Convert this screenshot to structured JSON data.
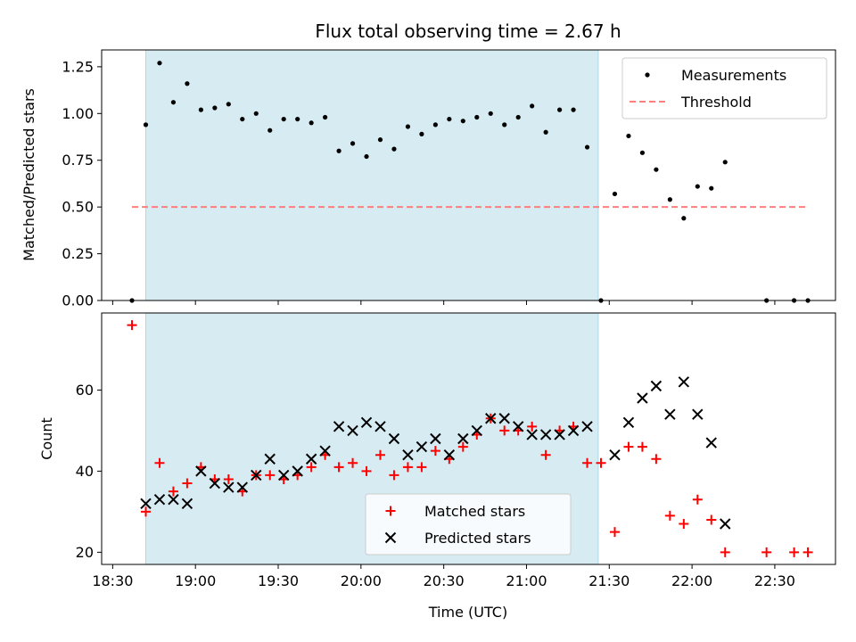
{
  "chart_data": [
    {
      "type": "scatter",
      "panel": "top",
      "title": "Flux total observing time = 2.67 h",
      "xlabel": "",
      "ylabel": "Matched/Predicted stars",
      "xlim": [
        "18:26",
        "22:52"
      ],
      "ylim": [
        0,
        1.34
      ],
      "yticks": [
        0.0,
        0.25,
        0.5,
        0.75,
        1.0,
        1.25
      ],
      "ytick_labels": [
        "0.00",
        "0.25",
        "0.50",
        "0.75",
        "1.00",
        "1.25"
      ],
      "shaded_span": [
        "18:42",
        "21:26"
      ],
      "legend": {
        "placement": "upper right",
        "entries": [
          "Measurements",
          "Threshold"
        ]
      },
      "series": [
        {
          "name": "Measurements",
          "marker": "dot",
          "color": "#000000",
          "points": [
            [
              "18:37",
              0.0
            ],
            [
              "18:42",
              0.94
            ],
            [
              "18:47",
              1.27
            ],
            [
              "18:52",
              1.06
            ],
            [
              "18:57",
              1.16
            ],
            [
              "19:02",
              1.02
            ],
            [
              "19:07",
              1.03
            ],
            [
              "19:12",
              1.05
            ],
            [
              "19:17",
              0.97
            ],
            [
              "19:22",
              1.0
            ],
            [
              "19:27",
              0.91
            ],
            [
              "19:32",
              0.97
            ],
            [
              "19:37",
              0.97
            ],
            [
              "19:42",
              0.95
            ],
            [
              "19:47",
              0.98
            ],
            [
              "19:52",
              0.8
            ],
            [
              "19:57",
              0.84
            ],
            [
              "20:02",
              0.77
            ],
            [
              "20:07",
              0.86
            ],
            [
              "20:12",
              0.81
            ],
            [
              "20:17",
              0.93
            ],
            [
              "20:22",
              0.89
            ],
            [
              "20:27",
              0.94
            ],
            [
              "20:32",
              0.97
            ],
            [
              "20:37",
              0.96
            ],
            [
              "20:42",
              0.98
            ],
            [
              "20:47",
              1.0
            ],
            [
              "20:52",
              0.94
            ],
            [
              "20:57",
              0.98
            ],
            [
              "21:02",
              1.04
            ],
            [
              "21:07",
              0.9
            ],
            [
              "21:12",
              1.02
            ],
            [
              "21:17",
              1.02
            ],
            [
              "21:22",
              0.82
            ],
            [
              "21:27",
              0.0
            ],
            [
              "21:32",
              0.57
            ],
            [
              "21:37",
              0.88
            ],
            [
              "21:42",
              0.79
            ],
            [
              "21:47",
              0.7
            ],
            [
              "21:52",
              0.54
            ],
            [
              "21:57",
              0.44
            ],
            [
              "22:02",
              0.61
            ],
            [
              "22:07",
              0.6
            ],
            [
              "22:12",
              0.74
            ],
            [
              "22:27",
              0.0
            ],
            [
              "22:37",
              0.0
            ],
            [
              "22:42",
              0.0
            ]
          ]
        },
        {
          "name": "Threshold",
          "marker": "dashed-line",
          "color": "#ff7f7f",
          "points": [
            [
              "18:37",
              0.5
            ],
            [
              "22:42",
              0.5
            ]
          ]
        }
      ]
    },
    {
      "type": "scatter",
      "panel": "bottom",
      "title": "",
      "xlabel": "Time (UTC)",
      "ylabel": "Count",
      "xlim": [
        "18:26",
        "22:52"
      ],
      "ylim": [
        17,
        79
      ],
      "yticks": [
        20,
        40,
        60
      ],
      "ytick_labels": [
        "20",
        "40",
        "60"
      ],
      "xtick_labels": [
        "18:30",
        "19:00",
        "19:30",
        "20:00",
        "20:30",
        "21:00",
        "21:30",
        "22:00",
        "22:30"
      ],
      "shaded_span": [
        "18:42",
        "21:26"
      ],
      "legend": {
        "placement": "lower center",
        "entries": [
          "Matched stars",
          "Predicted stars"
        ]
      },
      "series": [
        {
          "name": "Matched stars",
          "marker": "plus",
          "color": "#ff0000",
          "points": [
            [
              "18:37",
              76
            ],
            [
              "18:42",
              30
            ],
            [
              "18:47",
              42
            ],
            [
              "18:52",
              35
            ],
            [
              "18:57",
              37
            ],
            [
              "19:02",
              41
            ],
            [
              "19:07",
              38
            ],
            [
              "19:12",
              38
            ],
            [
              "19:17",
              35
            ],
            [
              "19:22",
              39
            ],
            [
              "19:27",
              39
            ],
            [
              "19:32",
              38
            ],
            [
              "19:37",
              39
            ],
            [
              "19:42",
              41
            ],
            [
              "19:47",
              44
            ],
            [
              "19:52",
              41
            ],
            [
              "19:57",
              42
            ],
            [
              "20:02",
              40
            ],
            [
              "20:07",
              44
            ],
            [
              "20:12",
              39
            ],
            [
              "20:17",
              41
            ],
            [
              "20:22",
              41
            ],
            [
              "20:27",
              45
            ],
            [
              "20:32",
              43
            ],
            [
              "20:37",
              46
            ],
            [
              "20:42",
              49
            ],
            [
              "20:47",
              53
            ],
            [
              "20:52",
              50
            ],
            [
              "20:57",
              50
            ],
            [
              "21:02",
              51
            ],
            [
              "21:07",
              44
            ],
            [
              "21:12",
              50
            ],
            [
              "21:17",
              51
            ],
            [
              "21:22",
              42
            ],
            [
              "21:27",
              42
            ],
            [
              "21:32",
              25
            ],
            [
              "21:37",
              46
            ],
            [
              "21:42",
              46
            ],
            [
              "21:47",
              43
            ],
            [
              "21:52",
              29
            ],
            [
              "21:57",
              27
            ],
            [
              "22:02",
              33
            ],
            [
              "22:07",
              28
            ],
            [
              "22:12",
              20
            ],
            [
              "22:27",
              20
            ],
            [
              "22:37",
              20
            ],
            [
              "22:42",
              20
            ]
          ]
        },
        {
          "name": "Predicted stars",
          "marker": "x",
          "color": "#000000",
          "points": [
            [
              "18:42",
              32
            ],
            [
              "18:47",
              33
            ],
            [
              "18:52",
              33
            ],
            [
              "18:57",
              32
            ],
            [
              "19:02",
              40
            ],
            [
              "19:07",
              37
            ],
            [
              "19:12",
              36
            ],
            [
              "19:17",
              36
            ],
            [
              "19:22",
              39
            ],
            [
              "19:27",
              43
            ],
            [
              "19:32",
              39
            ],
            [
              "19:37",
              40
            ],
            [
              "19:42",
              43
            ],
            [
              "19:47",
              45
            ],
            [
              "19:52",
              51
            ],
            [
              "19:57",
              50
            ],
            [
              "20:02",
              52
            ],
            [
              "20:07",
              51
            ],
            [
              "20:12",
              48
            ],
            [
              "20:17",
              44
            ],
            [
              "20:22",
              46
            ],
            [
              "20:27",
              48
            ],
            [
              "20:32",
              44
            ],
            [
              "20:37",
              48
            ],
            [
              "20:42",
              50
            ],
            [
              "20:47",
              53
            ],
            [
              "20:52",
              53
            ],
            [
              "20:57",
              51
            ],
            [
              "21:02",
              49
            ],
            [
              "21:07",
              49
            ],
            [
              "21:12",
              49
            ],
            [
              "21:17",
              50
            ],
            [
              "21:22",
              51
            ],
            [
              "21:32",
              44
            ],
            [
              "21:37",
              52
            ],
            [
              "21:42",
              58
            ],
            [
              "21:47",
              61
            ],
            [
              "21:52",
              54
            ],
            [
              "21:57",
              62
            ],
            [
              "22:02",
              54
            ],
            [
              "22:07",
              47
            ],
            [
              "22:12",
              27
            ]
          ]
        }
      ]
    }
  ]
}
